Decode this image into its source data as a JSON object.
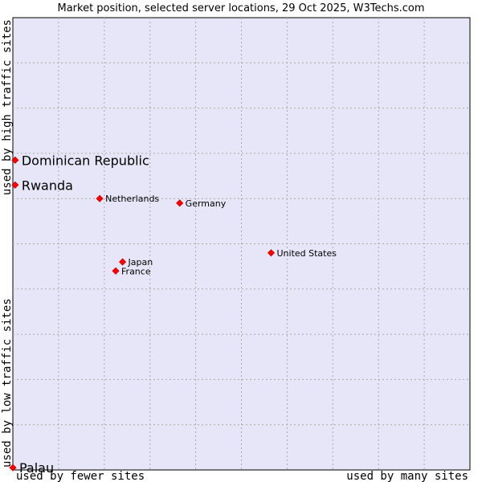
{
  "chart_data": {
    "type": "scatter",
    "title": "Market position, selected server locations, 29 Oct 2025, W3Techs.com",
    "xlabel_low": "used by fewer sites",
    "xlabel_high": "used by many sites",
    "ylabel_low": "used by low traffic sites",
    "ylabel_high": "used by high traffic sites",
    "xlim": [
      0,
      10
    ],
    "ylim": [
      0,
      10
    ],
    "grid": true,
    "colors": {
      "plot_bg": "#e6e6f8",
      "grid": "#aaaaaa",
      "point": "#ff0000",
      "point_edge": "#cc0000"
    },
    "points": [
      {
        "name": "Dominican Republic",
        "x": 0.05,
        "y": 6.85,
        "emphasis": true
      },
      {
        "name": "Rwanda",
        "x": 0.05,
        "y": 6.3,
        "emphasis": true
      },
      {
        "name": "Netherlands",
        "x": 1.9,
        "y": 6.0,
        "emphasis": false
      },
      {
        "name": "Germany",
        "x": 3.65,
        "y": 5.9,
        "emphasis": false
      },
      {
        "name": "United States",
        "x": 5.65,
        "y": 4.8,
        "emphasis": false
      },
      {
        "name": "Japan",
        "x": 2.4,
        "y": 4.6,
        "emphasis": false
      },
      {
        "name": "France",
        "x": 2.25,
        "y": 4.4,
        "emphasis": false
      },
      {
        "name": "Palau",
        "x": 0.0,
        "y": 0.05,
        "emphasis": true
      }
    ]
  }
}
